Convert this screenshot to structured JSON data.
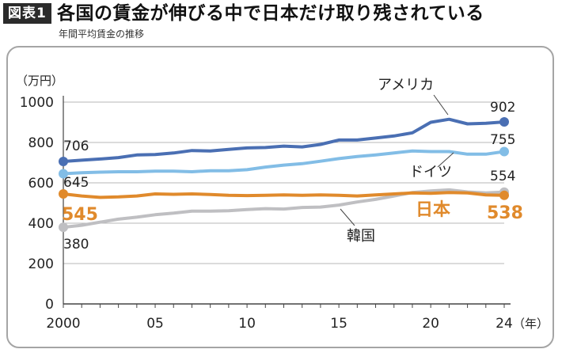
{
  "header": {
    "badge": "図表1",
    "title": "各国の賃金が伸びる中で日本だけ取り残されている",
    "subtitle": "年間平均賃金の推移"
  },
  "chart_data": {
    "type": "line",
    "ylabel": "（万円）",
    "xlabel": "（年）",
    "ylim": [
      0,
      1000
    ],
    "yticks": [
      0,
      200,
      400,
      600,
      800,
      1000
    ],
    "xlim": [
      2000,
      2024
    ],
    "xticks": [
      {
        "value": 2000,
        "label": "2000"
      },
      {
        "value": 2005,
        "label": "05"
      },
      {
        "value": 2010,
        "label": "10"
      },
      {
        "value": 2015,
        "label": "15"
      },
      {
        "value": 2020,
        "label": "20"
      },
      {
        "value": 2024,
        "label": "24"
      }
    ],
    "grid": true,
    "x": [
      2000,
      2001,
      2002,
      2003,
      2004,
      2005,
      2006,
      2007,
      2008,
      2009,
      2010,
      2011,
      2012,
      2013,
      2014,
      2015,
      2016,
      2017,
      2018,
      2019,
      2020,
      2021,
      2022,
      2023,
      2024
    ],
    "series": [
      {
        "name": "アメリカ",
        "color": "#4a6fb3",
        "start_label": "706",
        "end_label": "902",
        "values": [
          706,
          712,
          718,
          725,
          738,
          740,
          748,
          760,
          758,
          766,
          773,
          775,
          782,
          778,
          790,
          812,
          812,
          822,
          832,
          848,
          900,
          915,
          892,
          895,
          902
        ]
      },
      {
        "name": "ドイツ",
        "color": "#82bde6",
        "start_label": "645",
        "end_label": "755",
        "values": [
          645,
          650,
          653,
          655,
          655,
          658,
          658,
          655,
          660,
          660,
          665,
          678,
          688,
          695,
          707,
          720,
          730,
          738,
          748,
          758,
          755,
          755,
          742,
          742,
          755
        ]
      },
      {
        "name": "日本",
        "color": "#e08a2c",
        "start_label": "545",
        "end_label": "538",
        "values": [
          545,
          535,
          528,
          530,
          535,
          545,
          543,
          545,
          542,
          538,
          537,
          538,
          540,
          538,
          540,
          538,
          535,
          540,
          545,
          550,
          548,
          552,
          550,
          540,
          538
        ]
      },
      {
        "name": "韓国",
        "color": "#bfbfc2",
        "start_label": "380",
        "end_label": "554",
        "values": [
          380,
          390,
          405,
          420,
          430,
          442,
          450,
          460,
          460,
          462,
          468,
          472,
          470,
          478,
          480,
          490,
          505,
          518,
          535,
          552,
          560,
          565,
          555,
          550,
          554
        ]
      }
    ]
  }
}
